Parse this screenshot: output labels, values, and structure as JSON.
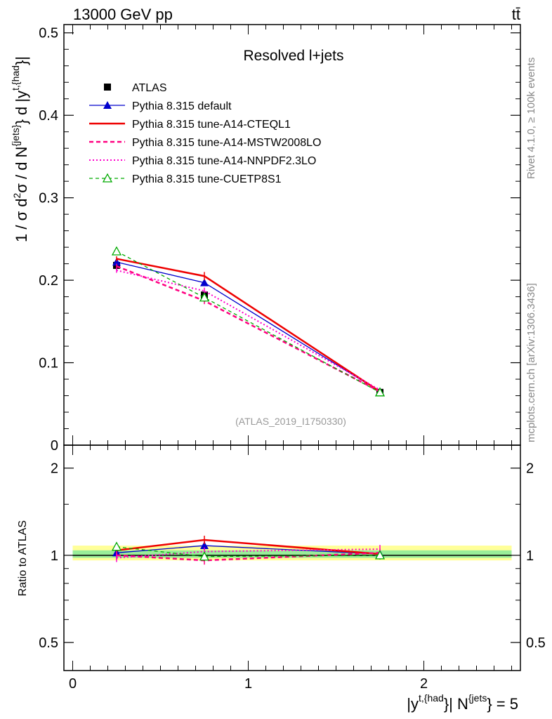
{
  "header": {
    "energy_label": "13000 GeV pp",
    "process_label": "tt̄",
    "panel_title": "Resolved l+jets",
    "analysis_id": "(ATLAS_2019_I1750330)",
    "side_rivet": "Rivet 4.1.0, ≥ 100k events",
    "side_mcplots": "mcplots.cern.ch [arXiv:1306.3436]"
  },
  "ratio_panel": {
    "ylabel": "Ratio to ATLAS",
    "yticks": [
      0.5,
      1,
      2
    ],
    "yticklabels": [
      "0.5",
      "1",
      "2"
    ],
    "ylim": [
      0.4,
      2.4
    ],
    "band_outer": [
      0.96,
      1.08
    ],
    "band_inner": [
      0.98,
      1.04
    ]
  },
  "chart_data": {
    "type": "line",
    "title": "Resolved l+jets",
    "xlabel": "|y^{t,{had}}| N^{jets} = 5",
    "ylabel": "1 / σ d²σ / d N^{jets} d |y^{t,{had}}|",
    "xlim": [
      -0.05,
      2.55
    ],
    "ylim": [
      0,
      0.51
    ],
    "xticks": [
      0,
      1,
      2
    ],
    "xticklabels": [
      "0",
      "1",
      "2"
    ],
    "yticks": [
      0,
      0.1,
      0.2,
      0.3,
      0.4,
      0.5
    ],
    "yticklabels": [
      "0",
      "0.1",
      "0.2",
      "0.3",
      "0.4",
      "0.5"
    ],
    "x": [
      0.25,
      0.75,
      1.75
    ],
    "series": [
      {
        "name": "ATLAS",
        "key": "atlas",
        "color": "#000000",
        "values": [
          0.218,
          0.182,
          0.064
        ],
        "errors": [
          0.005,
          0.004,
          0.002
        ],
        "marker": "square"
      },
      {
        "name": "Pythia 8.315 default",
        "key": "default",
        "color": "#0000cc",
        "values": [
          0.222,
          0.197,
          0.065
        ],
        "errors": [
          0.003,
          0.004,
          0.002
        ],
        "marker": "triangle"
      },
      {
        "name": "Pythia 8.315 tune-A14-CTEQL1",
        "key": "cteql1",
        "color": "#ee0000",
        "values": [
          0.226,
          0.205,
          0.065
        ],
        "errors": [
          0.003,
          0.005,
          0.002
        ],
        "marker": "none"
      },
      {
        "name": "Pythia 8.315 tune-A14-MSTW2008LO",
        "key": "mstw",
        "color": "#ff0080",
        "values": [
          0.217,
          0.175,
          0.065
        ],
        "errors": [
          0.003,
          0.004,
          0.002
        ],
        "marker": "none"
      },
      {
        "name": "Pythia 8.315 tune-A14-NNPDF2.3LO",
        "key": "nnpdf",
        "color": "#ff00cc",
        "values": [
          0.212,
          0.187,
          0.067
        ],
        "errors": [
          0.003,
          0.004,
          0.002
        ],
        "marker": "none"
      },
      {
        "name": "Pythia 8.315 tune-CUETP8S1",
        "key": "cuetp",
        "color": "#00aa00",
        "values": [
          0.235,
          0.179,
          0.064
        ],
        "errors": [
          0.004,
          0.004,
          0.002
        ],
        "marker": "open-triangle"
      }
    ],
    "ratios": [
      {
        "key": "default",
        "values": [
          1.02,
          1.08,
          1.01
        ]
      },
      {
        "key": "cteql1",
        "values": [
          1.04,
          1.13,
          1.01
        ]
      },
      {
        "key": "mstw",
        "values": [
          1.0,
          0.96,
          1.02
        ]
      },
      {
        "key": "nnpdf",
        "values": [
          0.98,
          1.03,
          1.05
        ]
      },
      {
        "key": "cuetp",
        "values": [
          1.07,
          0.99,
          1.0
        ]
      }
    ]
  }
}
